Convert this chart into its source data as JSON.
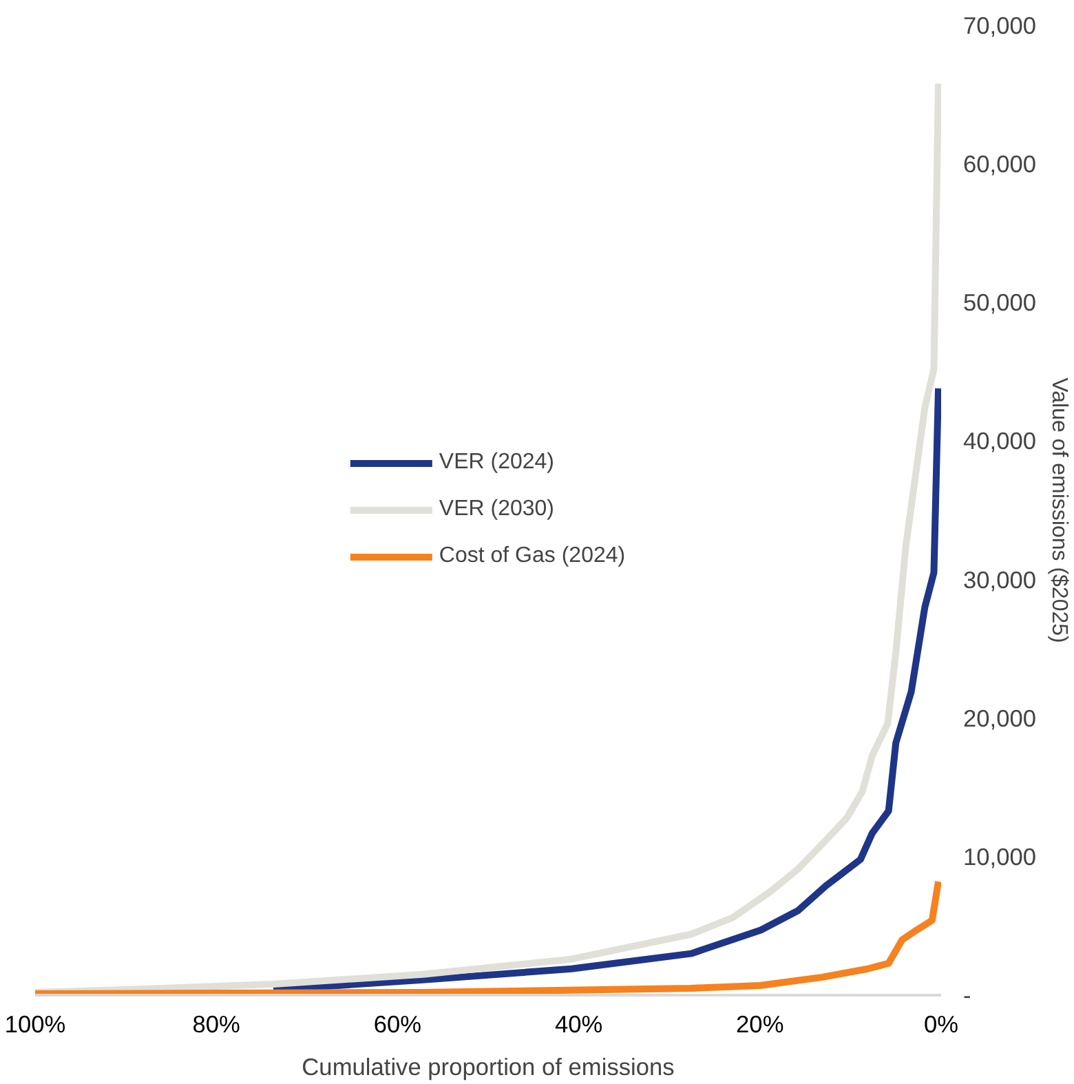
{
  "chart_data": {
    "type": "line",
    "xlabel": "Cumulative proportion of emissions",
    "ylabel": "Value of emissions ($2025)",
    "xlim": [
      100,
      0
    ],
    "xticks": [
      {
        "value": 100,
        "label": "100%"
      },
      {
        "value": 80,
        "label": "80%"
      },
      {
        "value": 60,
        "label": "60%"
      },
      {
        "value": 40,
        "label": "40%"
      },
      {
        "value": 20,
        "label": "20%"
      },
      {
        "value": 0,
        "label": "0%"
      }
    ],
    "ylim": [
      0,
      70000
    ],
    "yticks": [
      {
        "value": 0,
        "label": "-"
      },
      {
        "value": 10000,
        "label": "10,000"
      },
      {
        "value": 20000,
        "label": "20,000"
      },
      {
        "value": 30000,
        "label": "30,000"
      },
      {
        "value": 40000,
        "label": "40,000"
      },
      {
        "value": 50000,
        "label": "50,000"
      },
      {
        "value": 60000,
        "label": "60,000"
      },
      {
        "value": 70000,
        "label": "70,000"
      }
    ],
    "grid": false,
    "legend": "center",
    "marker": "none",
    "line_style": "solid",
    "series": [
      {
        "name": "VER (2024)",
        "color": "#1f3587",
        "x": [
          73.7,
          57.2,
          40.8,
          27.6,
          19.9,
          15.8,
          12.7,
          8.9,
          7.6,
          5.8,
          5.0,
          3.3,
          1.8,
          0.8,
          0.3
        ],
        "values": [
          400,
          1100,
          1900,
          3000,
          4700,
          6100,
          7900,
          9800,
          11700,
          13300,
          18200,
          21900,
          28000,
          30500,
          43800
        ]
      },
      {
        "name": "VER (2030)",
        "color": "#e0e0d8",
        "x": [
          100,
          90.1,
          73.7,
          57.2,
          40.8,
          27.6,
          23.0,
          18.8,
          15.8,
          12.7,
          10.4,
          8.7,
          7.6,
          5.9,
          5.0,
          3.9,
          1.8,
          0.8,
          0.3
        ],
        "values": [
          200,
          400,
          800,
          1500,
          2600,
          4400,
          5600,
          7500,
          9100,
          11200,
          12800,
          14700,
          17300,
          19600,
          24700,
          32400,
          42400,
          45200,
          65800
        ]
      },
      {
        "name": "Cost of Gas (2024)",
        "color": "#f5821f",
        "x": [
          100,
          57.2,
          27.6,
          20.0,
          13.1,
          8.1,
          5.8,
          4.3,
          2.7,
          1.0,
          0.3
        ],
        "values": [
          100,
          200,
          500,
          700,
          1300,
          1900,
          2300,
          4000,
          4700,
          5400,
          8200
        ]
      }
    ]
  }
}
